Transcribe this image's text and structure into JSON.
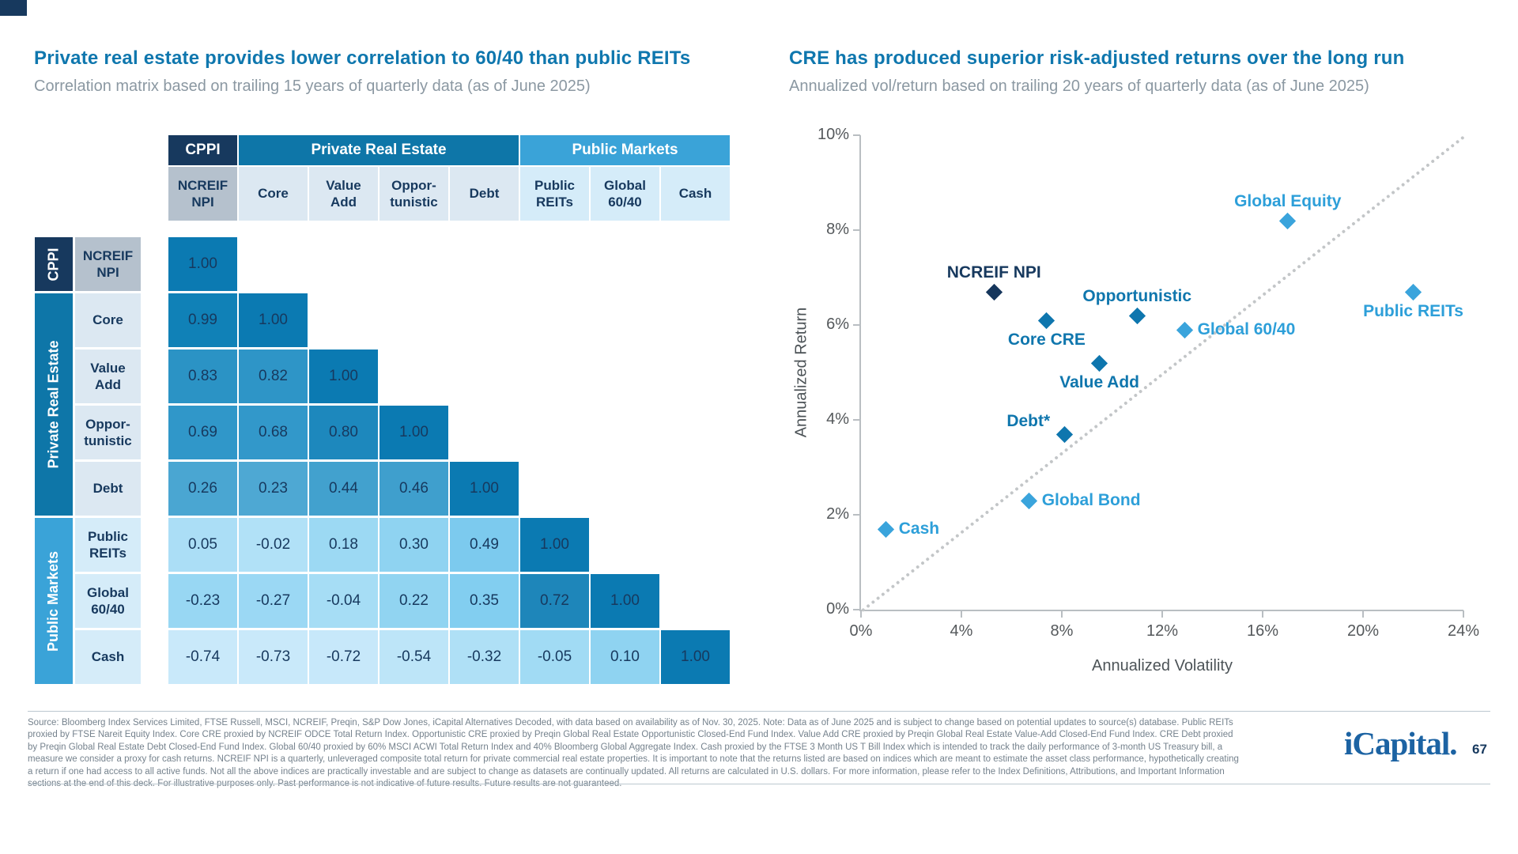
{
  "left": {
    "title": "Private real estate provides lower correlation to 60/40 than public REITs",
    "subtitle": "Correlation matrix based on trailing 15 years of quarterly data (as of June 2025)"
  },
  "right": {
    "title": "CRE has produced superior risk-adjusted returns over the long run",
    "subtitle": "Annualized vol/return based on trailing 20 years of quarterly data (as of June 2025)"
  },
  "chart_data": [
    {
      "type": "heatmap",
      "title": "Private real estate provides lower correlation to 60/40 than public REITs",
      "col_groups": [
        {
          "label": "CPPI",
          "color": "#17395e",
          "span": 1
        },
        {
          "label": "Private Real Estate",
          "color": "#0e76a8",
          "span": 4
        },
        {
          "label": "Public Markets",
          "color": "#3aa3d8",
          "span": 3
        }
      ],
      "columns": [
        "NCREIF\nNPI",
        "Core",
        "Value\nAdd",
        "Oppor-\ntunistic",
        "Debt",
        "Public\nREITs",
        "Global\n60/40",
        "Cash"
      ],
      "row_groups": [
        {
          "label": "CPPI",
          "color": "#17395e",
          "span": 1
        },
        {
          "label": "Private Real Estate",
          "color": "#0e76a8",
          "span": 4
        },
        {
          "label": "Public Markets",
          "color": "#3aa3d8",
          "span": 3
        }
      ],
      "subheader_colors": {
        "first": "#b5c1cd",
        "private": "#dce8f2",
        "public": "#d5ecf9"
      },
      "rows": [
        {
          "label": "NCREIF\nNPI",
          "cells": [
            {
              "v": "1.00",
              "c": "#0b7ab2"
            }
          ]
        },
        {
          "label": "Core",
          "cells": [
            {
              "v": "0.99",
              "c": "#1081b7"
            },
            {
              "v": "1.00",
              "c": "#0b7ab2"
            }
          ]
        },
        {
          "label": "Value\nAdd",
          "cells": [
            {
              "v": "0.83",
              "c": "#2b93c5"
            },
            {
              "v": "0.82",
              "c": "#2e95c7"
            },
            {
              "v": "1.00",
              "c": "#0b7ab2"
            }
          ]
        },
        {
          "label": "Oppor-\ntunistic",
          "cells": [
            {
              "v": "0.69",
              "c": "#3097c9"
            },
            {
              "v": "0.68",
              "c": "#3298ca"
            },
            {
              "v": "0.80",
              "c": "#1d88bd"
            },
            {
              "v": "1.00",
              "c": "#0b7ab2"
            }
          ]
        },
        {
          "label": "Debt",
          "cells": [
            {
              "v": "0.26",
              "c": "#4aa6d2"
            },
            {
              "v": "0.23",
              "c": "#4ea8d3"
            },
            {
              "v": "0.44",
              "c": "#42a1ce"
            },
            {
              "v": "0.46",
              "c": "#3f9fcd"
            },
            {
              "v": "1.00",
              "c": "#0b7ab2"
            }
          ]
        },
        {
          "label": "Public\nREITs",
          "cells": [
            {
              "v": "0.05",
              "c": "#abdef6"
            },
            {
              "v": "-0.02",
              "c": "#b1e1f7"
            },
            {
              "v": "0.18",
              "c": "#9cd9f3"
            },
            {
              "v": "0.30",
              "c": "#8fd3f1"
            },
            {
              "v": "0.49",
              "c": "#7ccaee"
            },
            {
              "v": "1.00",
              "c": "#0b7ab2"
            }
          ]
        },
        {
          "label": "Global\n60/40",
          "cells": [
            {
              "v": "-0.23",
              "c": "#98d7f3"
            },
            {
              "v": "-0.27",
              "c": "#9bd8f4"
            },
            {
              "v": "-0.04",
              "c": "#a6ddf5"
            },
            {
              "v": "0.22",
              "c": "#91d4f1"
            },
            {
              "v": "0.35",
              "c": "#82cef0"
            },
            {
              "v": "0.72",
              "c": "#1e86ba"
            },
            {
              "v": "1.00",
              "c": "#0b7ab2"
            }
          ]
        },
        {
          "label": "Cash",
          "cells": [
            {
              "v": "-0.74",
              "c": "#c9e9fa"
            },
            {
              "v": "-0.73",
              "c": "#c9e9fa"
            },
            {
              "v": "-0.72",
              "c": "#c7e8fa"
            },
            {
              "v": "-0.54",
              "c": "#bde5f8"
            },
            {
              "v": "-0.32",
              "c": "#afe0f6"
            },
            {
              "v": "-0.05",
              "c": "#a1dbf4"
            },
            {
              "v": "0.10",
              "c": "#8fd3f1"
            },
            {
              "v": "1.00",
              "c": "#0b7ab2"
            }
          ]
        }
      ],
      "value_text_color": "#17395e"
    },
    {
      "type": "scatter",
      "title": "CRE has produced superior risk-adjusted returns over the long run",
      "xlabel": "Annualized Volatility",
      "ylabel": "Annualized Return",
      "xlim": [
        0,
        24
      ],
      "ylim": [
        0,
        10
      ],
      "x_ticks": [
        {
          "v": 0,
          "label": "0%"
        },
        {
          "v": 4,
          "label": "4%"
        },
        {
          "v": 8,
          "label": "8%"
        },
        {
          "v": 12,
          "label": "12%"
        },
        {
          "v": 16,
          "label": "16%"
        },
        {
          "v": 20,
          "label": "20%"
        },
        {
          "v": 24,
          "label": "24%"
        }
      ],
      "y_ticks": [
        {
          "v": 0,
          "label": "0%"
        },
        {
          "v": 2,
          "label": "2%"
        },
        {
          "v": 4,
          "label": "4%"
        },
        {
          "v": 6,
          "label": "6%"
        },
        {
          "v": 8,
          "label": "8%"
        },
        {
          "v": 10,
          "label": "10%"
        }
      ],
      "colors": {
        "cppi": "#16365c",
        "private": "#0e76ae",
        "public": "#3aa4dc"
      },
      "label_colors": {
        "cppi": "#17395e",
        "private": "#0f76ad",
        "public": "#2d9fd9"
      },
      "diagonal": {
        "from": [
          0,
          0
        ],
        "to": [
          24,
          10
        ],
        "style": "dotted"
      },
      "points": [
        {
          "label": "NCREIF NPI",
          "x": 5.3,
          "y": 6.7,
          "group": "cppi",
          "label_pos": "above"
        },
        {
          "label": "Core CRE",
          "x": 7.4,
          "y": 6.1,
          "group": "private",
          "label_pos": "below"
        },
        {
          "label": "Value Add",
          "x": 9.5,
          "y": 5.2,
          "group": "private",
          "label_pos": "below"
        },
        {
          "label": "Opportunistic",
          "x": 11.0,
          "y": 6.2,
          "group": "private",
          "label_pos": "above"
        },
        {
          "label": "Debt*",
          "x": 8.1,
          "y": 3.7,
          "group": "private",
          "label_pos": "above-left"
        },
        {
          "label": "Public REITs",
          "x": 22.0,
          "y": 6.7,
          "group": "public",
          "label_pos": "below"
        },
        {
          "label": "Global 60/40",
          "x": 12.9,
          "y": 5.9,
          "group": "public",
          "label_pos": "right"
        },
        {
          "label": "Global Equity",
          "x": 17.0,
          "y": 8.2,
          "group": "public",
          "label_pos": "above"
        },
        {
          "label": "Global Bond",
          "x": 6.7,
          "y": 2.3,
          "group": "public",
          "label_pos": "right"
        },
        {
          "label": "Cash",
          "x": 1.0,
          "y": 1.7,
          "group": "public",
          "label_pos": "right"
        }
      ]
    }
  ],
  "footer": {
    "lines": [
      "Source: Bloomberg Index Services Limited, FTSE Russell, MSCI, NCREIF, Preqin, S&P Dow Jones, iCapital Alternatives Decoded, with data based on availability as of Nov. 30, 2025. Note: Data as of June 2025 and is subject to change based on potential updates to source(s) database. Public REITs",
      "proxied by FTSE Nareit Equity Index. Core CRE proxied by NCREIF ODCE Total Return Index. Opportunistic CRE proxied by Preqin Global Real Estate Opportunistic Closed-End Fund Index. Value Add CRE proxied by Preqin Global Real Estate Value-Add Closed-End Fund Index. CRE Debt proxied",
      "by Preqin Global Real Estate Debt Closed-End Fund Index. Global 60/40 proxied by 60% MSCI ACWI Total Return Index and 40% Bloomberg Global Aggregate Index. Cash proxied by the FTSE 3 Month US T Bill Index which is intended to track the daily performance of 3-month US Treasury bill, a",
      "measure we consider a proxy for cash returns. NCREIF NPI is a quarterly, unleveraged composite total return for private commercial real estate properties. It is important to note that the returns listed are based on indices which are meant to estimate the asset class performance, hypothetically creating",
      "a return if one had access to all active funds. Not all the above indices are practically investable and are subject to change as datasets are continually updated. All returns are calculated in U.S. dollars. For more information, please refer to the Index Definitions, Attributions, and Important Information",
      "sections at the end of this deck. For illustrative purposes only. Past performance is not indicative of future results. Future results are not guaranteed."
    ],
    "logo": "iCapital.",
    "page_number": "67"
  }
}
